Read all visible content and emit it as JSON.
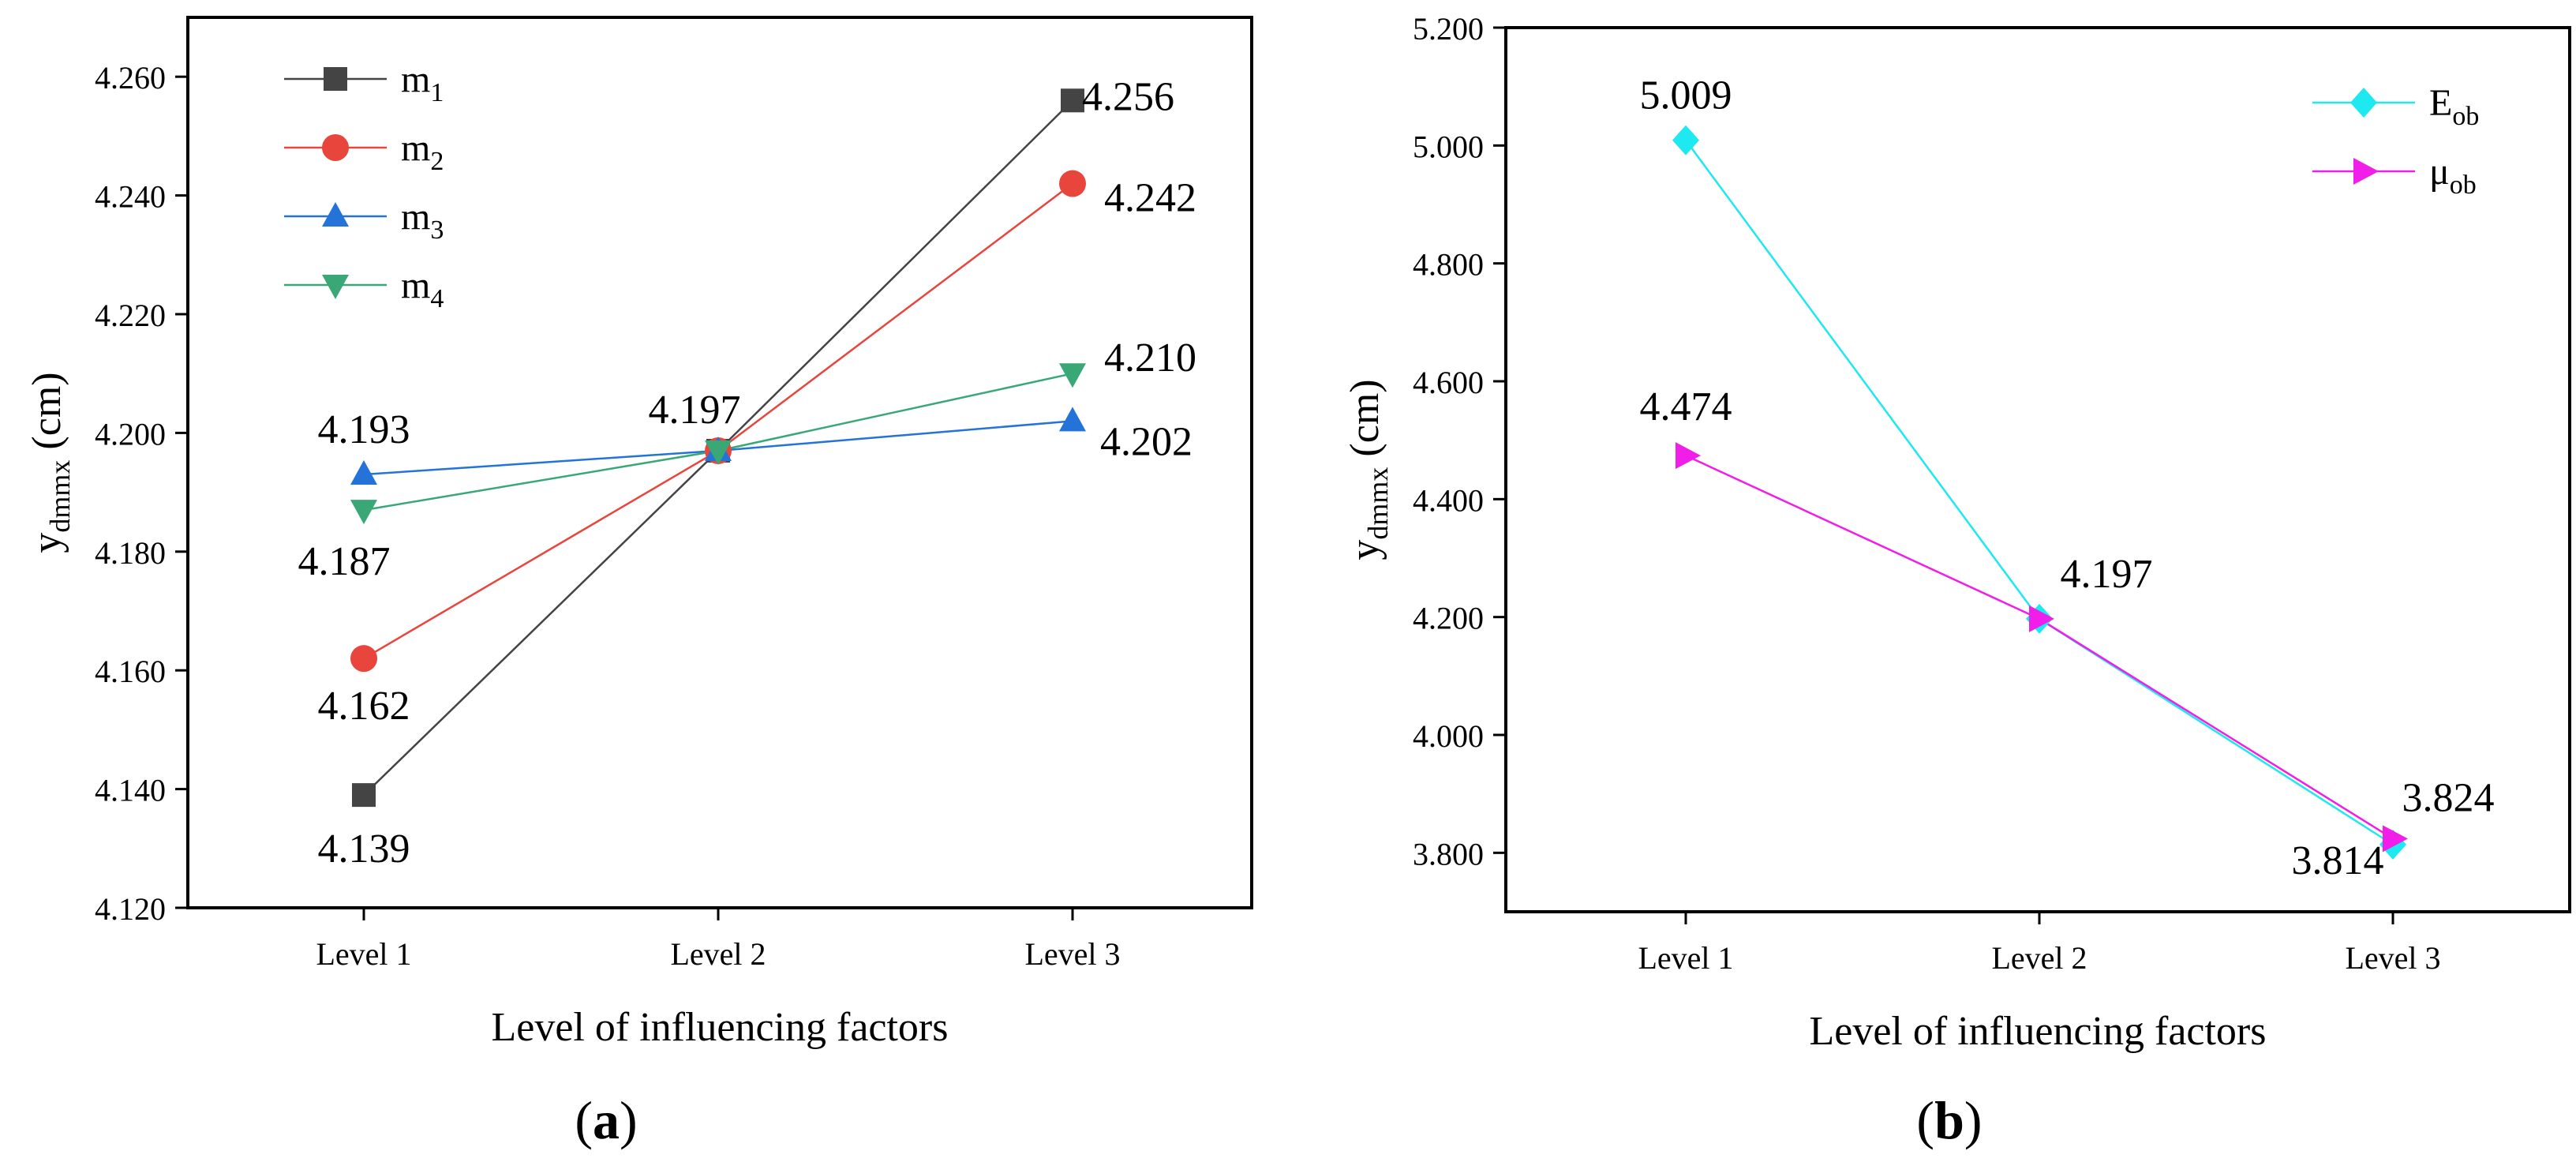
{
  "chart_data": [
    {
      "type": "line",
      "panel_label": "a",
      "categories": [
        "Level 1",
        "Level 2",
        "Level 3"
      ],
      "xlabel": "Level of influencing factors",
      "ylabel": {
        "base": "y",
        "sub": "dmmx",
        "unit": " (cm)"
      },
      "ylim": [
        4.12,
        4.27
      ],
      "yticks": [
        4.12,
        4.14,
        4.16,
        4.18,
        4.2,
        4.22,
        4.24,
        4.26
      ],
      "ytick_labels": [
        "4.120",
        "4.140",
        "4.160",
        "4.180",
        "4.200",
        "4.220",
        "4.240",
        "4.260"
      ],
      "legend_position": "top-left",
      "series": [
        {
          "name": "m",
          "sub": "1",
          "color": "#444444",
          "marker": "square",
          "values": [
            4.139,
            4.197,
            4.256
          ]
        },
        {
          "name": "m",
          "sub": "2",
          "color": "#e8453c",
          "marker": "circle",
          "values": [
            4.162,
            4.197,
            4.242
          ]
        },
        {
          "name": "m",
          "sub": "3",
          "color": "#2473d8",
          "marker": "triangle-up",
          "values": [
            4.193,
            4.197,
            4.202
          ]
        },
        {
          "name": "m",
          "sub": "4",
          "color": "#3aa876",
          "marker": "triangle-down",
          "values": [
            4.187,
            4.197,
            4.21
          ]
        }
      ],
      "annotations": [
        {
          "text": "4.139",
          "x": 0,
          "y": 4.139
        },
        {
          "text": "4.162",
          "x": 0,
          "y": 4.162
        },
        {
          "text": "4.193",
          "x": 0,
          "y": 4.193
        },
        {
          "text": "4.187",
          "x": 0,
          "y": 4.187
        },
        {
          "text": "4.197",
          "x": 1,
          "y": 4.197
        },
        {
          "text": "4.256",
          "x": 2,
          "y": 4.256
        },
        {
          "text": "4.242",
          "x": 2,
          "y": 4.242
        },
        {
          "text": "4.210",
          "x": 2,
          "y": 4.21
        },
        {
          "text": "4.202",
          "x": 2,
          "y": 4.202
        }
      ]
    },
    {
      "type": "line",
      "panel_label": "b",
      "categories": [
        "Level 1",
        "Level 2",
        "Level 3"
      ],
      "xlabel": "Level of influencing factors",
      "ylabel": {
        "base": "y",
        "sub": "dmmx",
        "unit": " (cm)"
      },
      "ylim": [
        3.7,
        5.2
      ],
      "yticks": [
        3.8,
        4.0,
        4.2,
        4.4,
        4.6,
        4.8,
        5.0,
        5.2
      ],
      "ytick_labels": [
        "3.800",
        "4.000",
        "4.200",
        "4.400",
        "4.600",
        "4.800",
        "5.000",
        "5.200"
      ],
      "legend_position": "top-right",
      "series": [
        {
          "name": "E",
          "sub": "ob",
          "color": "#1ee8f0",
          "marker": "diamond",
          "values": [
            5.009,
            4.197,
            3.814
          ]
        },
        {
          "name": "μ",
          "sub": "ob",
          "color": "#f01ee8",
          "marker": "triangle-right",
          "values": [
            4.474,
            4.197,
            3.824
          ]
        }
      ],
      "annotations": [
        {
          "text": "5.009",
          "x": 0,
          "y": 5.009
        },
        {
          "text": "4.474",
          "x": 0,
          "y": 4.474
        },
        {
          "text": "4.197",
          "x": 1,
          "y": 4.197
        },
        {
          "text": "3.814",
          "x": 2,
          "y": 3.814
        },
        {
          "text": "3.824",
          "x": 2,
          "y": 3.824
        }
      ]
    }
  ]
}
